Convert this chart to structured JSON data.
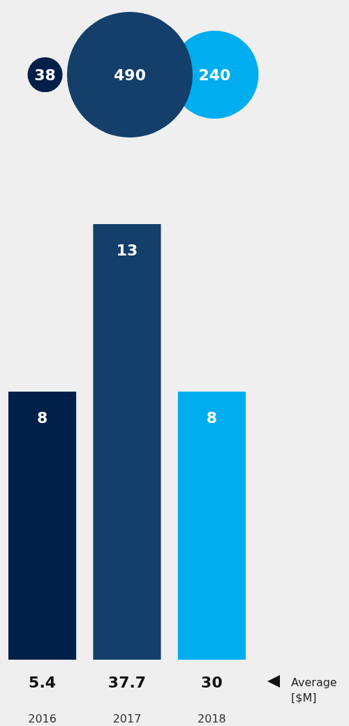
{
  "chart_data": [
    {
      "type": "other",
      "categories": [
        null,
        null,
        null
      ],
      "values": [
        38,
        490,
        240
      ],
      "colors": [
        "#00204a",
        "#143f6a",
        "#00aeef"
      ],
      "data_labels": true
    },
    {
      "type": "bar",
      "categories": [
        "2016",
        "2017",
        "2018"
      ],
      "values": [
        8,
        13,
        8
      ],
      "colors": [
        "#00204a",
        "#143f6a",
        "#00aeef"
      ],
      "data_labels": true,
      "annotations": [
        "5.4",
        "37.7",
        "30",
        "Average [$M]"
      ]
    }
  ]
}
